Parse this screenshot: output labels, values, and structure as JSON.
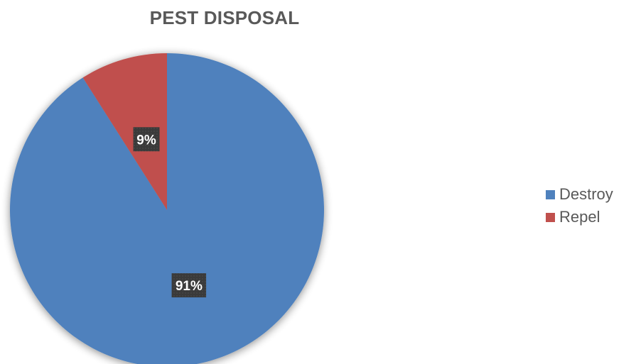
{
  "chart_data": {
    "type": "pie",
    "title": "PEST DISPOSAL",
    "categories": [
      "Destroy",
      "Repel"
    ],
    "values": [
      91,
      9
    ],
    "data_labels": [
      "91%",
      "9%"
    ],
    "colors": [
      "#4F81BD",
      "#C0504D"
    ],
    "label_box_color": "#3A3A3A",
    "legend_position": "right",
    "start_angle": "12 o'clock",
    "direction": "clockwise"
  }
}
